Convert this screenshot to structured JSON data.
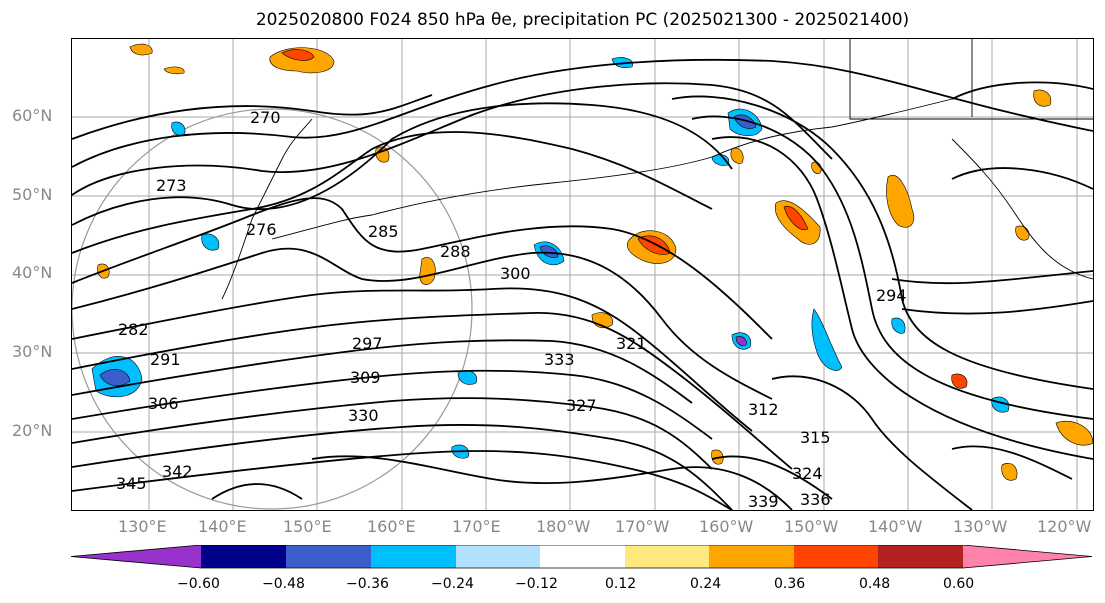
{
  "title": "2025020800 F024 850 hPa θe, precipitation PC (2025021300 - 2025021400)",
  "lat_labels": [
    "60°N",
    "50°N",
    "40°N",
    "30°N",
    "20°N"
  ],
  "lon_labels": [
    "130°E",
    "140°E",
    "150°E",
    "160°E",
    "170°E",
    "180°W",
    "170°W",
    "160°W",
    "150°W",
    "140°W",
    "130°W",
    "120°W"
  ],
  "contour_labels": [
    "270",
    "273",
    "276",
    "282",
    "285",
    "288",
    "291",
    "294",
    "297",
    "300",
    "306",
    "309",
    "312",
    "315",
    "321",
    "324",
    "327",
    "330",
    "333",
    "336",
    "339",
    "342",
    "345"
  ],
  "colorbar": {
    "ticks": [
      "−0.60",
      "−0.48",
      "−0.36",
      "−0.24",
      "−0.12",
      "0.12",
      "0.24",
      "0.36",
      "0.48",
      "0.60"
    ],
    "colors": [
      "#9932cc",
      "#00008b",
      "#3a5fcd",
      "#00bfff",
      "#b0e2ff",
      "#ffffff",
      "#ffe97f",
      "#ffa500",
      "#ff4500",
      "#b22222",
      "#ff82ab"
    ]
  }
}
